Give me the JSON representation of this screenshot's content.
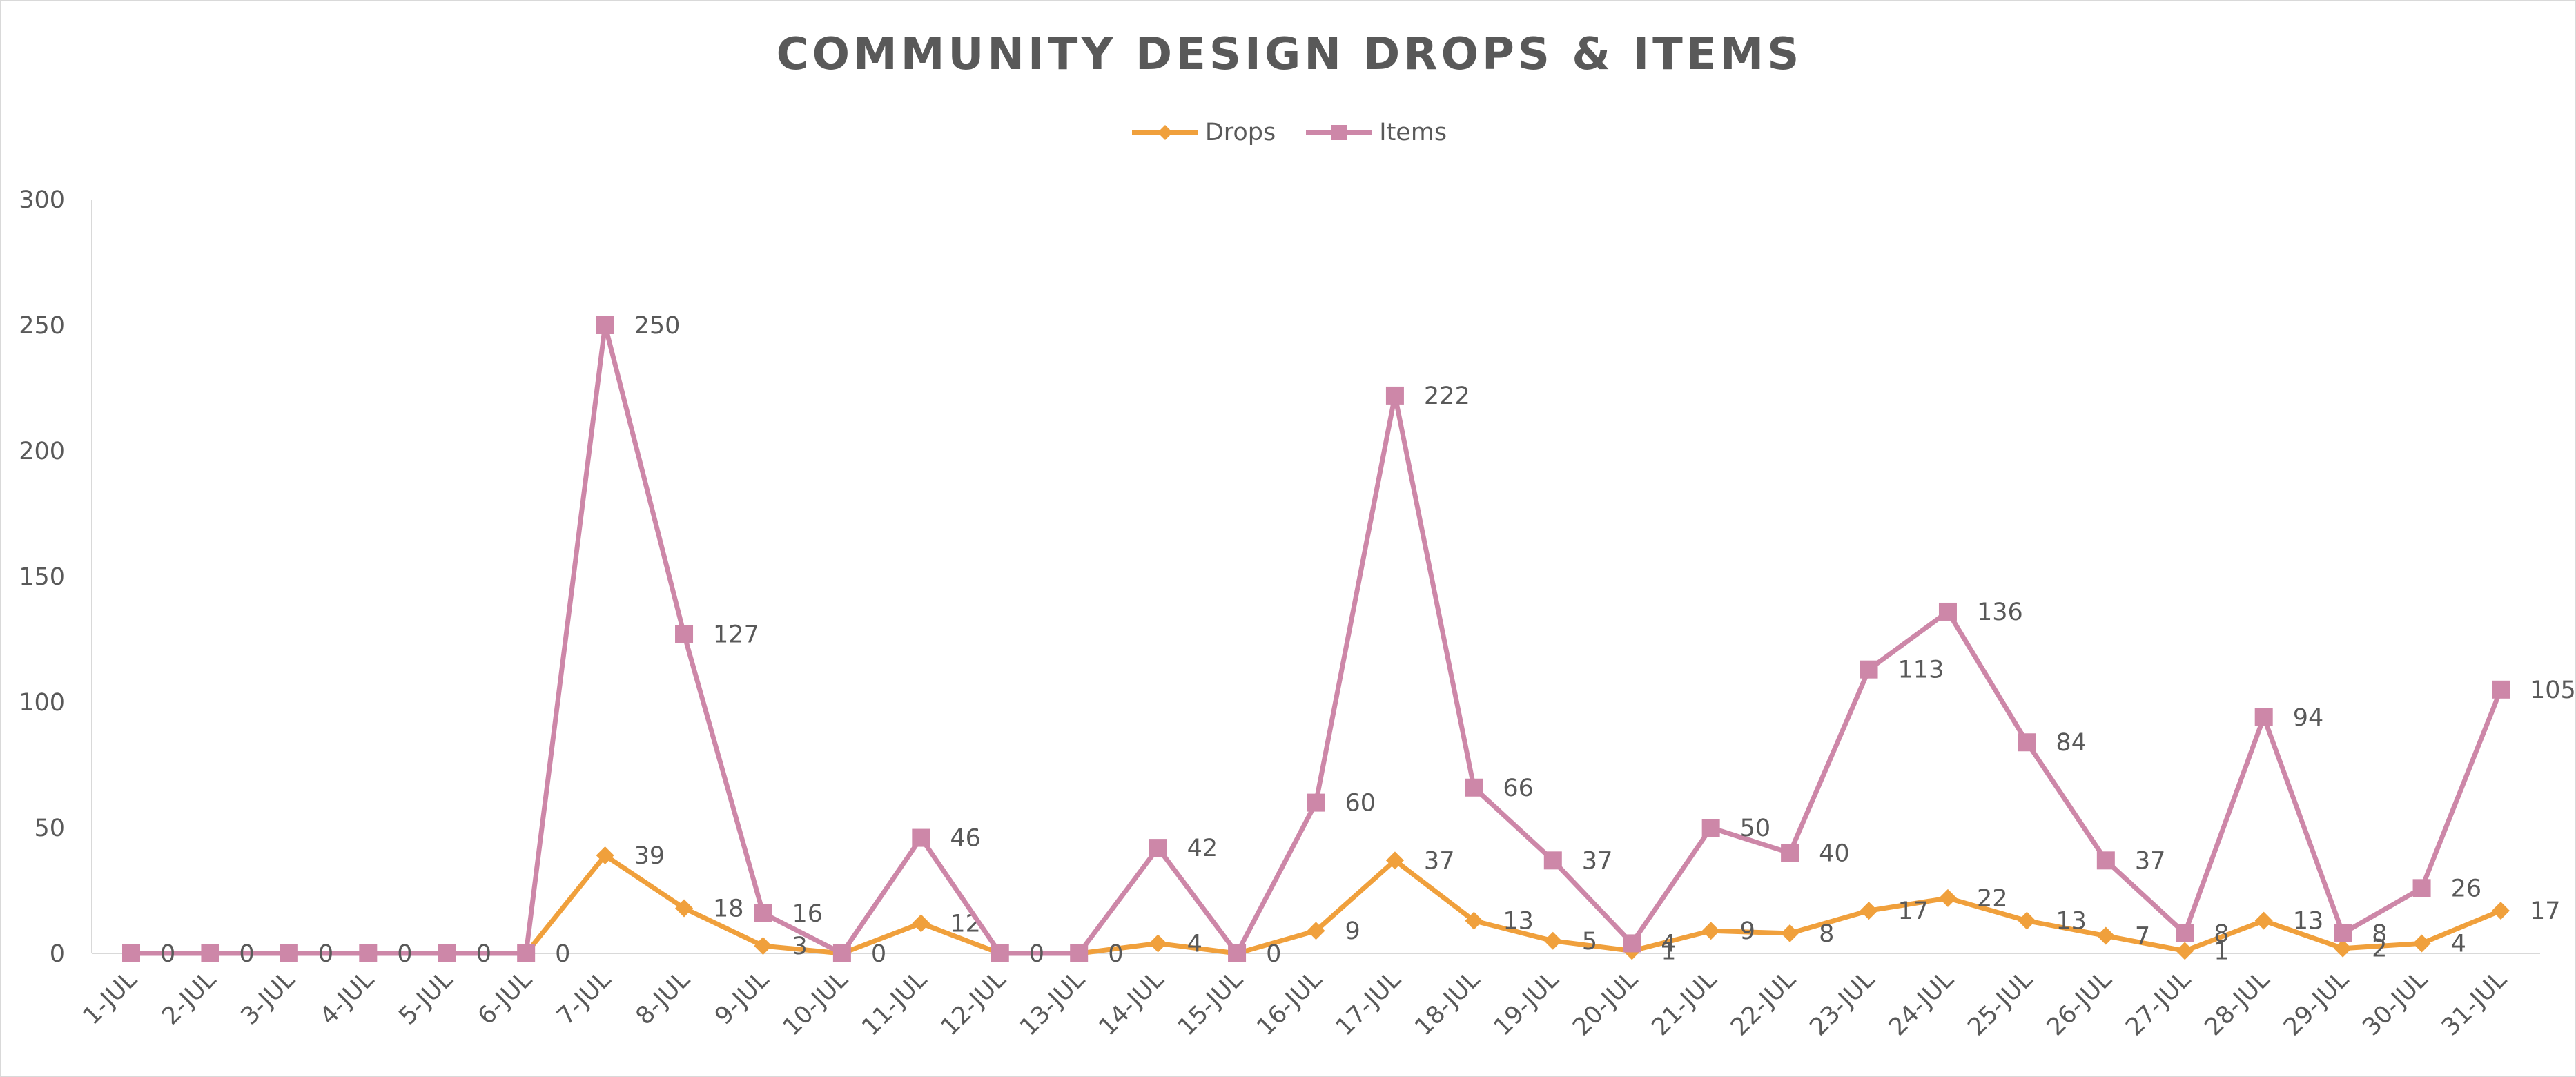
{
  "chart_data": {
    "type": "line",
    "title": "COMMUNITY DESIGN DROPS & ITEMS",
    "xlabel": "",
    "ylabel": "",
    "ylim": [
      0,
      300
    ],
    "yticks": [
      0,
      50,
      100,
      150,
      200,
      250,
      300
    ],
    "grid": false,
    "legend_position": "top",
    "categories": [
      "1-Jul",
      "2-Jul",
      "3-Jul",
      "4-Jul",
      "5-Jul",
      "6-Jul",
      "7-Jul",
      "8-Jul",
      "9-Jul",
      "10-Jul",
      "11-Jul",
      "12-Jul",
      "13-Jul",
      "14-Jul",
      "15-Jul",
      "16-Jul",
      "17-Jul",
      "18-Jul",
      "19-Jul",
      "20-Jul",
      "21-Jul",
      "22-Jul",
      "23-Jul",
      "24-Jul",
      "25-Jul",
      "26-Jul",
      "27-Jul",
      "28-Jul",
      "29-Jul",
      "30-Jul",
      "31-Jul"
    ],
    "series": [
      {
        "name": "Drops",
        "color": "#f0a03c",
        "marker": "diamond",
        "values": [
          0,
          0,
          0,
          0,
          0,
          0,
          39,
          18,
          3,
          0,
          12,
          0,
          0,
          4,
          0,
          9,
          37,
          13,
          5,
          1,
          9,
          8,
          17,
          22,
          13,
          7,
          1,
          13,
          2,
          4,
          17
        ],
        "labels": [
          "",
          "",
          "",
          "",
          "",
          "",
          "39",
          "18",
          "3",
          "",
          "12",
          "",
          "",
          "4",
          "",
          "9",
          "37",
          "13",
          "5",
          "1",
          "9",
          "8",
          "17",
          "22",
          "13",
          "7",
          "1",
          "13",
          "2",
          "4",
          "17"
        ]
      },
      {
        "name": "Items",
        "color": "#cd87a8",
        "marker": "square",
        "values": [
          0,
          0,
          0,
          0,
          0,
          0,
          250,
          127,
          16,
          0,
          46,
          0,
          0,
          42,
          0,
          60,
          222,
          66,
          37,
          4,
          50,
          40,
          113,
          136,
          84,
          37,
          8,
          94,
          8,
          26,
          105
        ],
        "labels": [
          "0",
          "0",
          "0",
          "0",
          "0",
          "0",
          "250",
          "127",
          "16",
          "0",
          "46",
          "0",
          "0",
          "42",
          "0",
          "60",
          "222",
          "66",
          "37",
          "4",
          "50",
          "40",
          "113",
          "136",
          "84",
          "37",
          "8",
          "94",
          "8",
          "26",
          "105"
        ]
      }
    ]
  }
}
